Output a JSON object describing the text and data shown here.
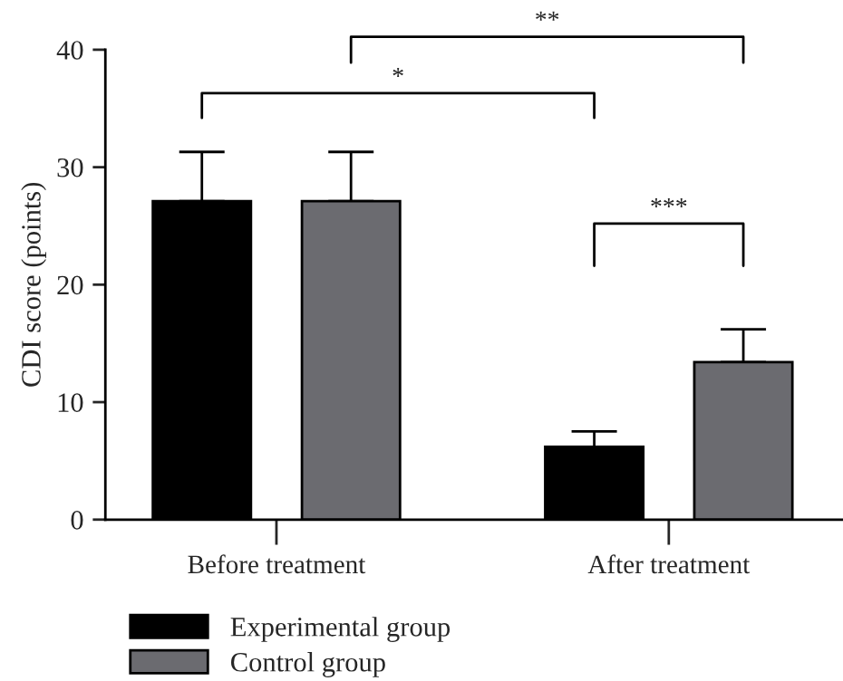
{
  "chart_data": {
    "type": "bar",
    "ylabel": "CDI score (points)",
    "categories": [
      "Before treatment",
      "After treatment"
    ],
    "series": [
      {
        "name": "Experimental group",
        "color": "#000000",
        "values": [
          27.1,
          6.2
        ],
        "errors": [
          [
            27.1,
            31.3
          ],
          [
            6.2,
            7.5
          ]
        ]
      },
      {
        "name": "Control group",
        "color": "#6b6b70",
        "values": [
          27.1,
          13.4
        ],
        "errors": [
          [
            27.1,
            31.3
          ],
          [
            13.4,
            16.2
          ]
        ]
      }
    ],
    "ylim": [
      0,
      40
    ],
    "yticks": [
      0,
      10,
      20,
      30,
      40
    ],
    "grid": false,
    "legend": "bottom left",
    "annotations": [
      "*",
      "**",
      "***"
    ]
  }
}
